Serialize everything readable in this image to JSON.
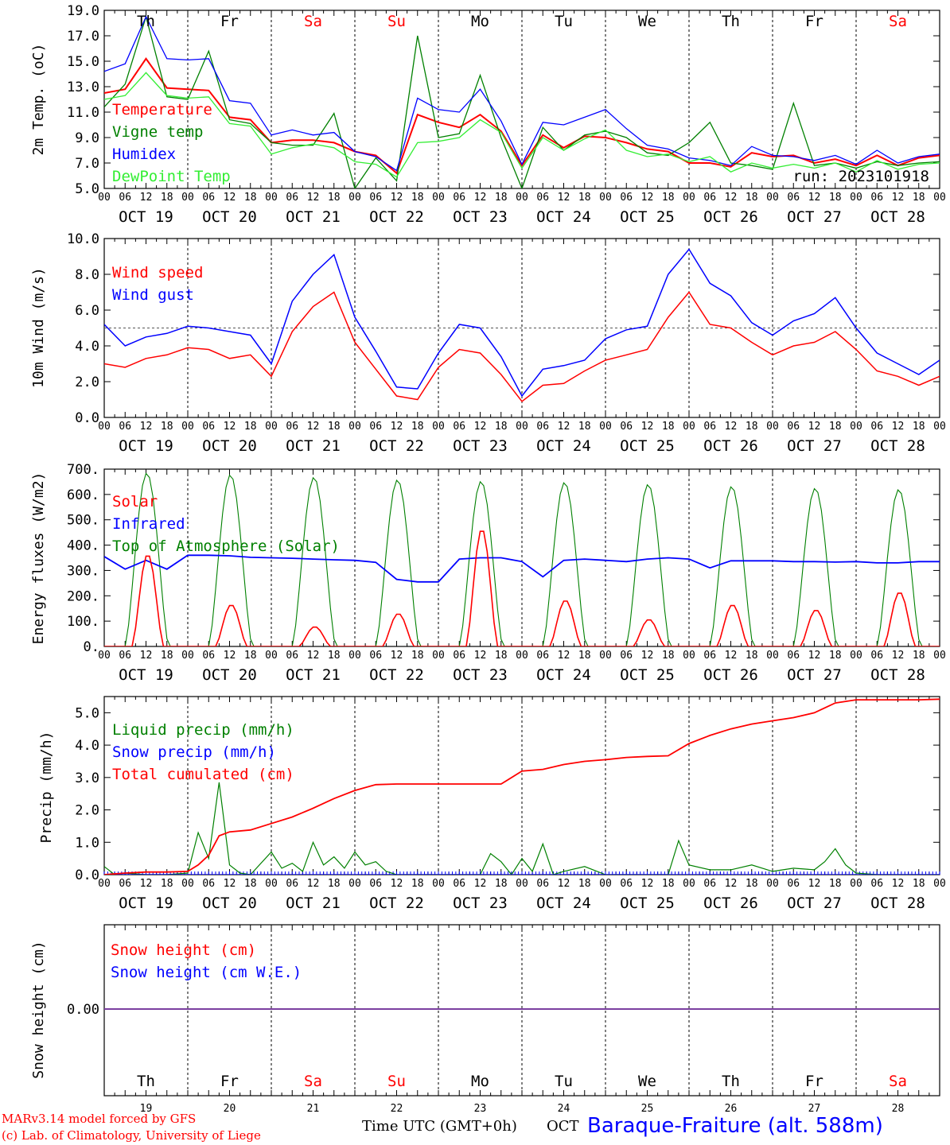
{
  "days": {
    "names": [
      "Th",
      "Fr",
      "Sa",
      "Su",
      "Mo",
      "Tu",
      "We",
      "Th",
      "Fr",
      "Sa"
    ],
    "weekend": [
      false,
      false,
      true,
      true,
      false,
      false,
      false,
      false,
      false,
      true
    ],
    "dates": [
      "OCT 19",
      "OCT 20",
      "OCT 21",
      "OCT 22",
      "OCT 23",
      "OCT 24",
      "OCT 25",
      "OCT 26",
      "OCT 27",
      "OCT 28"
    ],
    "day_numbers": [
      "19",
      "20",
      "21",
      "22",
      "23",
      "24",
      "25",
      "26",
      "27",
      "28"
    ],
    "hour_ticks": [
      "00",
      "06",
      "12",
      "18"
    ],
    "final_hour": "00"
  },
  "colors": {
    "red": "#ff0000",
    "green": "#008000",
    "blue": "#0000ff",
    "lightgreen": "#33ee33",
    "purple": "#7b3fa0",
    "weekday_text": "#000000",
    "weekend_text": "#ff0000"
  },
  "chart_data": [
    {
      "id": "temperature",
      "type": "line",
      "ylabel": "2m Temp. (oC)",
      "ylim": [
        5,
        19
      ],
      "yticks": [
        "5.0",
        "7.0",
        "9.0",
        "11.0",
        "13.0",
        "15.0",
        "17.0",
        "19.0"
      ],
      "x_unit": "hours since OCT 19 00 UTC",
      "xlim": [
        0,
        240
      ],
      "run_label": "run: 2023101918",
      "series": [
        {
          "name": "Temperature",
          "color": "#ff0000",
          "x": [
            0,
            6,
            12,
            18,
            24,
            30,
            36,
            42,
            48,
            54,
            60,
            66,
            72,
            78,
            84,
            90,
            96,
            102,
            108,
            114,
            120,
            126,
            132,
            138,
            144,
            150,
            156,
            162,
            168,
            174,
            180,
            186,
            192,
            198,
            204,
            210,
            216,
            222,
            228,
            234,
            240
          ],
          "y": [
            12.5,
            12.8,
            15.2,
            12.9,
            12.8,
            12.7,
            10.6,
            10.4,
            8.6,
            8.8,
            8.8,
            8.6,
            7.9,
            7.6,
            6.2,
            10.8,
            10.2,
            9.8,
            10.8,
            9.5,
            6.8,
            9.2,
            8.2,
            9.1,
            9.0,
            8.6,
            8.1,
            7.9,
            7.0,
            7.0,
            6.7,
            7.8,
            7.5,
            7.6,
            7.0,
            7.3,
            6.8,
            7.6,
            6.8,
            7.4,
            7.6
          ]
        },
        {
          "name": "Vigne temp",
          "color": "#008000",
          "x": [
            0,
            6,
            12,
            18,
            24,
            30,
            36,
            42,
            48,
            54,
            60,
            66,
            72,
            78,
            84,
            90,
            96,
            102,
            108,
            114,
            120,
            126,
            132,
            138,
            144,
            150,
            156,
            162,
            168,
            174,
            180,
            186,
            192,
            198,
            204,
            210,
            216,
            222,
            228,
            234,
            240
          ],
          "y": [
            11.4,
            13.2,
            18.5,
            12.2,
            12.0,
            15.8,
            10.4,
            10.1,
            8.6,
            8.4,
            8.4,
            10.9,
            5.0,
            7.4,
            5.6,
            17.0,
            9.0,
            9.3,
            13.9,
            9.0,
            5.0,
            9.8,
            8.0,
            9.2,
            9.5,
            9.0,
            7.8,
            7.6,
            8.6,
            10.2,
            7.0,
            6.8,
            6.5,
            11.7,
            6.8,
            7.0,
            6.6,
            7.1,
            6.8,
            7.0,
            7.1
          ]
        },
        {
          "name": "Humidex",
          "color": "#0000ff",
          "x": [
            0,
            6,
            12,
            18,
            24,
            30,
            36,
            42,
            48,
            54,
            60,
            66,
            72,
            78,
            84,
            90,
            96,
            102,
            108,
            114,
            120,
            126,
            132,
            138,
            144,
            150,
            156,
            162,
            168,
            174,
            180,
            186,
            192,
            198,
            204,
            210,
            216,
            222,
            228,
            234,
            240
          ],
          "y": [
            14.2,
            14.8,
            18.5,
            15.2,
            15.1,
            15.2,
            11.9,
            11.7,
            9.2,
            9.6,
            9.2,
            9.4,
            7.9,
            7.5,
            6.4,
            12.1,
            11.2,
            11.0,
            12.8,
            10.3,
            6.9,
            10.2,
            10.0,
            10.6,
            11.2,
            9.7,
            8.4,
            8.1,
            7.4,
            7.2,
            6.8,
            8.3,
            7.6,
            7.5,
            7.2,
            7.6,
            6.9,
            8.0,
            7.0,
            7.5,
            7.7
          ]
        },
        {
          "name": "DewPoint Temp",
          "color": "#33ee33",
          "x": [
            0,
            6,
            12,
            18,
            24,
            30,
            36,
            42,
            48,
            54,
            60,
            66,
            72,
            78,
            84,
            90,
            96,
            102,
            108,
            114,
            120,
            126,
            132,
            138,
            144,
            150,
            156,
            162,
            168,
            174,
            180,
            186,
            192,
            198,
            204,
            210,
            216,
            222,
            228,
            234,
            240
          ],
          "y": [
            12.0,
            12.3,
            14.1,
            12.3,
            12.1,
            12.2,
            10.1,
            9.9,
            7.7,
            8.2,
            8.5,
            8.2,
            7.1,
            6.9,
            5.9,
            8.6,
            8.7,
            9.0,
            10.4,
            9.4,
            6.6,
            9.0,
            8.0,
            8.9,
            9.6,
            8.0,
            7.5,
            7.7,
            7.1,
            7.5,
            6.3,
            7.0,
            6.6,
            6.9,
            6.6,
            7.0,
            6.3,
            7.2,
            6.5,
            6.9,
            7.0
          ]
        }
      ]
    },
    {
      "id": "wind",
      "type": "line",
      "ylabel": "10m Wind (m/s)",
      "ylim": [
        0,
        10
      ],
      "yticks": [
        "0.0",
        "2.0",
        "4.0",
        "6.0",
        "8.0",
        "10.0"
      ],
      "reference_line": 5,
      "xlim": [
        0,
        240
      ],
      "series": [
        {
          "name": "Wind speed",
          "color": "#ff0000",
          "x": [
            0,
            6,
            12,
            18,
            24,
            30,
            36,
            42,
            48,
            54,
            60,
            66,
            72,
            78,
            84,
            90,
            96,
            102,
            108,
            114,
            120,
            126,
            132,
            138,
            144,
            150,
            156,
            162,
            168,
            174,
            180,
            186,
            192,
            198,
            204,
            210,
            216,
            222,
            228,
            234,
            240
          ],
          "y": [
            3.0,
            2.8,
            3.3,
            3.5,
            3.9,
            3.8,
            3.3,
            3.5,
            2.3,
            4.8,
            6.2,
            7.0,
            4.2,
            2.7,
            1.2,
            1.0,
            2.8,
            3.8,
            3.6,
            2.4,
            0.9,
            1.8,
            1.9,
            2.6,
            3.2,
            3.5,
            3.8,
            5.6,
            7.0,
            5.2,
            5.0,
            4.2,
            3.5,
            4.0,
            4.2,
            4.8,
            3.8,
            2.6,
            2.3,
            1.8,
            2.3
          ]
        },
        {
          "name": "Wind gust",
          "color": "#0000ff",
          "x": [
            0,
            6,
            12,
            18,
            24,
            30,
            36,
            42,
            48,
            54,
            60,
            66,
            72,
            78,
            84,
            90,
            96,
            102,
            108,
            114,
            120,
            126,
            132,
            138,
            144,
            150,
            156,
            162,
            168,
            174,
            180,
            186,
            192,
            198,
            204,
            210,
            216,
            222,
            228,
            234,
            240
          ],
          "y": [
            5.2,
            4.0,
            4.5,
            4.7,
            5.1,
            5.0,
            4.8,
            4.6,
            3.0,
            6.5,
            8.0,
            9.1,
            5.6,
            3.7,
            1.7,
            1.6,
            3.6,
            5.2,
            5.0,
            3.4,
            1.2,
            2.7,
            2.9,
            3.2,
            4.4,
            4.9,
            5.1,
            8.0,
            9.4,
            7.5,
            6.8,
            5.3,
            4.6,
            5.4,
            5.8,
            6.7,
            5.0,
            3.6,
            3.0,
            2.4,
            3.2
          ]
        }
      ]
    },
    {
      "id": "energy",
      "type": "line",
      "ylabel": "Energy fluxes (W/m2)",
      "ylim": [
        0,
        700
      ],
      "yticks": [
        "0.",
        "100.",
        "200.",
        "300.",
        "400.",
        "500.",
        "600.",
        "700."
      ],
      "xlim": [
        0,
        240
      ],
      "series": [
        {
          "name": "Solar",
          "color": "#ff0000",
          "peaks": [
            365,
            165,
            78,
            130,
            465,
            183,
            107,
            165,
            145,
            215
          ]
        },
        {
          "name": "Infrared",
          "color": "#0000ff",
          "x": [
            0,
            6,
            12,
            18,
            24,
            30,
            36,
            42,
            48,
            54,
            60,
            66,
            72,
            78,
            84,
            90,
            96,
            102,
            108,
            114,
            120,
            126,
            132,
            138,
            144,
            150,
            156,
            162,
            168,
            174,
            180,
            186,
            192,
            198,
            204,
            210,
            216,
            222,
            228,
            234,
            240
          ],
          "y": [
            355,
            305,
            340,
            305,
            360,
            360,
            358,
            352,
            350,
            348,
            345,
            342,
            340,
            332,
            265,
            255,
            255,
            345,
            350,
            350,
            335,
            275,
            340,
            345,
            340,
            335,
            345,
            350,
            345,
            310,
            338,
            338,
            338,
            335,
            335,
            333,
            335,
            330,
            330,
            335,
            335
          ]
        },
        {
          "name": "Top of Atmosphere (Solar)",
          "color": "#008000",
          "peaks": [
            685,
            678,
            668,
            658,
            652,
            648,
            640,
            632,
            625,
            620
          ]
        }
      ]
    },
    {
      "id": "precip",
      "type": "line",
      "ylabel": "Precip (mm/h)",
      "ylim": [
        0,
        5.5
      ],
      "yticks": [
        "0.0",
        "1.0",
        "2.0",
        "3.0",
        "4.0",
        "5.0"
      ],
      "xlim": [
        0,
        240
      ],
      "series": [
        {
          "name": "Liquid precip (mm/h)",
          "color": "#008000",
          "x": [
            0,
            3,
            6,
            12,
            18,
            24,
            27,
            30,
            33,
            36,
            39,
            42,
            48,
            51,
            54,
            57,
            60,
            63,
            66,
            69,
            72,
            75,
            78,
            81,
            84,
            90,
            96,
            102,
            108,
            111,
            114,
            117,
            120,
            123,
            126,
            129,
            132,
            138,
            144,
            150,
            156,
            159,
            162,
            165,
            168,
            174,
            180,
            186,
            192,
            198,
            204,
            207,
            210,
            213,
            216,
            222,
            228,
            234,
            240
          ],
          "y": [
            0.25,
            0.0,
            0.05,
            0.0,
            0.0,
            0.05,
            1.3,
            0.5,
            2.85,
            0.3,
            0.05,
            0.0,
            0.7,
            0.2,
            0.35,
            0.1,
            1.0,
            0.3,
            0.55,
            0.2,
            0.7,
            0.3,
            0.4,
            0.1,
            0.0,
            0.0,
            0.0,
            0.0,
            0.0,
            0.65,
            0.4,
            0.0,
            0.5,
            0.1,
            0.95,
            0.0,
            0.1,
            0.25,
            0.0,
            0.0,
            0.0,
            0.0,
            0.0,
            1.05,
            0.3,
            0.15,
            0.15,
            0.3,
            0.1,
            0.2,
            0.15,
            0.4,
            0.8,
            0.3,
            0.05,
            0.0,
            0.0,
            0.0,
            0.0
          ]
        },
        {
          "name": "Snow precip (mm/h)",
          "color": "#0000ff",
          "x": [
            0,
            240
          ],
          "y": [
            0,
            0
          ]
        },
        {
          "name": "Total cumulated (cm)",
          "color": "#ff0000",
          "x": [
            0,
            6,
            12,
            18,
            24,
            27,
            30,
            33,
            36,
            42,
            48,
            54,
            60,
            66,
            72,
            78,
            84,
            90,
            96,
            102,
            108,
            114,
            120,
            126,
            132,
            138,
            144,
            150,
            156,
            162,
            168,
            174,
            180,
            186,
            192,
            198,
            204,
            210,
            216,
            222,
            228,
            234,
            240
          ],
          "y": [
            0.0,
            0.05,
            0.08,
            0.08,
            0.1,
            0.3,
            0.6,
            1.2,
            1.32,
            1.38,
            1.58,
            1.78,
            2.05,
            2.35,
            2.6,
            2.78,
            2.8,
            2.8,
            2.8,
            2.8,
            2.8,
            2.8,
            3.2,
            3.25,
            3.4,
            3.5,
            3.55,
            3.62,
            3.65,
            3.67,
            4.05,
            4.3,
            4.5,
            4.65,
            4.75,
            4.85,
            5.0,
            5.3,
            5.4,
            5.4,
            5.4,
            5.4,
            5.42
          ]
        }
      ]
    },
    {
      "id": "snow",
      "type": "line",
      "ylabel": "Snow height (cm)",
      "yticks": [
        "0.00"
      ],
      "xlim": [
        0,
        240
      ],
      "series": [
        {
          "name": "Snow height (cm)",
          "color": "#ff0000",
          "x": [
            0,
            240
          ],
          "y": [
            0,
            0
          ]
        },
        {
          "name": "Snow height (cm W.E.)",
          "color": "#0000ff",
          "x": [
            0,
            240
          ],
          "y": [
            0,
            0
          ]
        }
      ]
    }
  ],
  "footer": {
    "model": "MARv3.14 model forced by GFS",
    "copyright": "(c) Lab. of Climatology, University of Liege",
    "time_axis": "Time UTC (GMT+0h)",
    "month": "OCT",
    "station": "Baraque-Fraiture (alt. 588m)"
  }
}
